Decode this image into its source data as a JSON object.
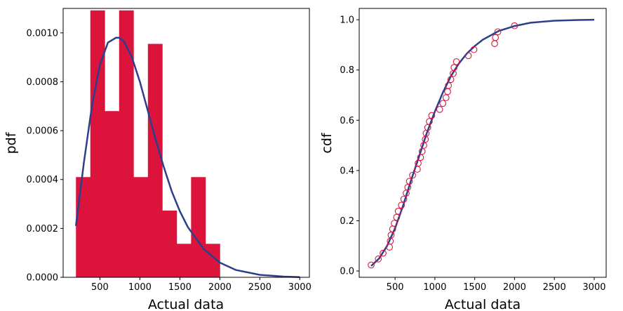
{
  "chart_data": [
    {
      "type": "bar",
      "xlabel": "Actual data",
      "ylabel": "pdf",
      "xlim": [
        40,
        3120
      ],
      "ylim": [
        0,
        0.0011
      ],
      "xticks": [
        500,
        1000,
        1500,
        2000,
        2500,
        3000
      ],
      "xtick_labels": [
        "500",
        "1000",
        "1500",
        "2000",
        "2500",
        "3000"
      ],
      "yticks": [
        0,
        0.0002,
        0.0004,
        0.0006,
        0.0008,
        0.001
      ],
      "ytick_labels": [
        "0.0000",
        "0.0002",
        "0.0004",
        "0.0006",
        "0.0008",
        "0.0010"
      ],
      "bar_color": "#dc143c",
      "line_color": "#2b3f8c",
      "bins": [
        {
          "x0": 200,
          "x1": 380,
          "value": 0.00041
        },
        {
          "x0": 380,
          "x1": 560,
          "value": 0.001092
        },
        {
          "x0": 560,
          "x1": 740,
          "value": 0.00068
        },
        {
          "x0": 740,
          "x1": 920,
          "value": 0.001092
        },
        {
          "x0": 920,
          "x1": 1100,
          "value": 0.00041
        },
        {
          "x0": 1100,
          "x1": 1280,
          "value": 0.000955
        },
        {
          "x0": 1280,
          "x1": 1460,
          "value": 0.000273
        },
        {
          "x0": 1460,
          "x1": 1640,
          "value": 0.000137
        },
        {
          "x0": 1640,
          "x1": 1820,
          "value": 0.00041
        },
        {
          "x0": 1820,
          "x1": 2000,
          "value": 0.000137
        }
      ],
      "series": [
        {
          "type": "line",
          "x": [
            200,
            300,
            400,
            500,
            600,
            700,
            740,
            800,
            900,
            1000,
            1100,
            1200,
            1300,
            1400,
            1500,
            1600,
            1800,
            2000,
            2200,
            2500,
            2800,
            3000
          ],
          "y": [
            0.00021,
            0.00047,
            0.0007,
            0.00087,
            0.00096,
            0.00098,
            0.00098,
            0.000965,
            0.0009,
            0.0008,
            0.00068,
            0.00056,
            0.00045,
            0.00035,
            0.00027,
            0.000205,
            0.000115,
            6e-05,
            3e-05,
            1e-05,
            3e-06,
            1e-06
          ]
        }
      ]
    },
    {
      "type": "scatter",
      "xlabel": "Actual data",
      "ylabel": "cdf",
      "xlim": [
        50,
        3150
      ],
      "ylim": [
        -0.025,
        1.045
      ],
      "xticks": [
        500,
        1000,
        1500,
        2000,
        2500,
        3000
      ],
      "xtick_labels": [
        "500",
        "1000",
        "1500",
        "2000",
        "2500",
        "3000"
      ],
      "yticks": [
        0,
        0.2,
        0.4,
        0.6,
        0.8,
        1.0
      ],
      "ytick_labels": [
        "0.0",
        "0.2",
        "0.4",
        "0.6",
        "0.8",
        "1.0"
      ],
      "marker_color": "#dc143c",
      "line_color": "#2b3f8c",
      "series": [
        {
          "type": "scatter",
          "x": [
            200,
            290,
            350,
            430,
            440,
            450,
            470,
            490,
            520,
            540,
            580,
            610,
            640,
            660,
            680,
            720,
            780,
            790,
            820,
            840,
            860,
            880,
            890,
            910,
            930,
            960,
            1060,
            1100,
            1140,
            1160,
            1170,
            1200,
            1230,
            1240,
            1270,
            1420,
            1490,
            1750,
            1760,
            1790,
            2000
          ],
          "y": [
            0.024,
            0.048,
            0.071,
            0.095,
            0.119,
            0.143,
            0.167,
            0.19,
            0.214,
            0.238,
            0.262,
            0.286,
            0.31,
            0.333,
            0.357,
            0.381,
            0.405,
            0.429,
            0.452,
            0.476,
            0.5,
            0.524,
            0.548,
            0.571,
            0.595,
            0.619,
            0.643,
            0.667,
            0.69,
            0.714,
            0.738,
            0.762,
            0.786,
            0.81,
            0.833,
            0.857,
            0.881,
            0.905,
            0.929,
            0.952,
            0.976
          ]
        },
        {
          "type": "line",
          "x": [
            200,
            300,
            400,
            500,
            600,
            700,
            800,
            900,
            1000,
            1100,
            1200,
            1300,
            1400,
            1500,
            1600,
            1800,
            2000,
            2200,
            2500,
            2800,
            3000
          ],
          "y": [
            0.02,
            0.05,
            0.1,
            0.17,
            0.26,
            0.36,
            0.455,
            0.55,
            0.635,
            0.71,
            0.775,
            0.825,
            0.865,
            0.895,
            0.92,
            0.955,
            0.975,
            0.988,
            0.996,
            0.999,
            1.0
          ]
        }
      ]
    }
  ]
}
